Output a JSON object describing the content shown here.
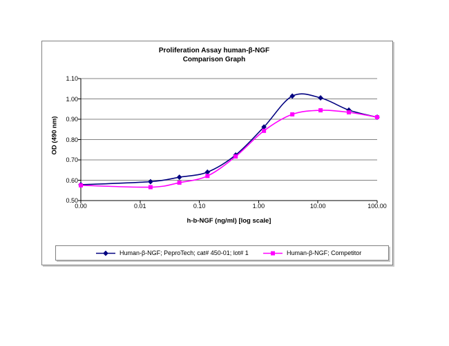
{
  "chart_data": {
    "type": "line",
    "title": "Proliferation Assay human-β-NGF",
    "subtitle": "Comparison Graph",
    "xlabel": "h-b-NGF (ng/ml) [log scale]",
    "ylabel": "OD (490 nm)",
    "x_scale": "log",
    "grid": "horizontal",
    "smooth_lines": true,
    "legend_position": "bottom-box",
    "ylim": [
      0.5,
      1.1
    ],
    "y_ticks": [
      0.5,
      0.6,
      0.7,
      0.8,
      0.9,
      1.0,
      1.1
    ],
    "y_tick_labels": [
      "0.50",
      "0.60",
      "0.70",
      "0.80",
      "0.90",
      "1.00",
      "1.10"
    ],
    "x_tick_values": [
      0.001,
      0.01,
      0.1,
      1,
      10,
      100
    ],
    "x_tick_labels": [
      "0.00",
      "0.01",
      "0.10",
      "1.00",
      "10.00",
      "100.00"
    ],
    "note": "x = 0 ng/ml control point is plotted at the left origin of the log axis (labeled 0.00)",
    "series": [
      {
        "name": "Human-β-NGF; PeproTech; cat# 450-01; lot# 1",
        "color": "#000080",
        "marker": "diamond",
        "x": [
          0,
          0.015,
          0.046,
          0.137,
          0.41,
          1.23,
          3.7,
          11.1,
          33.3,
          100
        ],
        "y": [
          0.578,
          0.593,
          0.615,
          0.64,
          0.724,
          0.862,
          1.014,
          1.005,
          0.945,
          0.91
        ]
      },
      {
        "name": "Human-β-NGF; Competitor",
        "color": "#FF00FF",
        "marker": "square",
        "x": [
          0,
          0.015,
          0.046,
          0.137,
          0.41,
          1.23,
          3.7,
          11.1,
          33.3,
          100
        ],
        "y": [
          0.575,
          0.566,
          0.588,
          0.621,
          0.717,
          0.843,
          0.924,
          0.944,
          0.934,
          0.91
        ]
      }
    ],
    "colors": {
      "gridline": "#808080",
      "axis": "#000000",
      "frame_border": "#7f7f7f",
      "frame_shadow": "#c9c9c9",
      "background": "#ffffff"
    }
  }
}
